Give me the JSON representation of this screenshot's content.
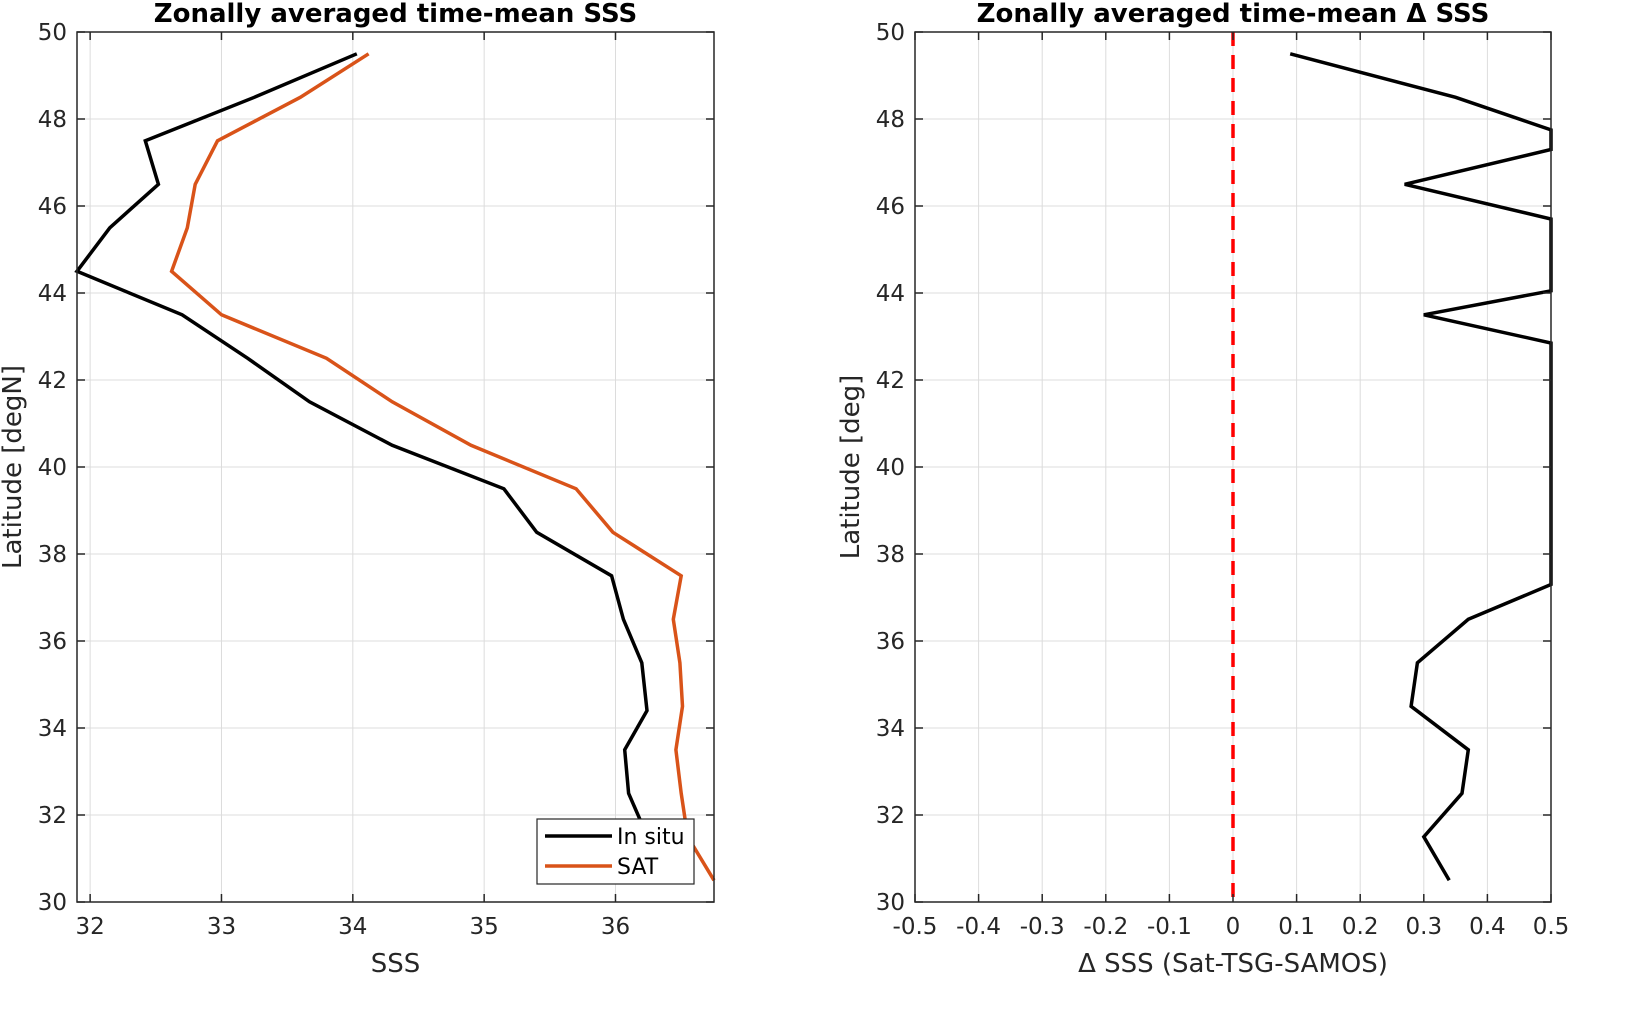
{
  "chart_data": [
    {
      "type": "line",
      "title": "Zonally averaged time-mean SSS",
      "xlabel": "SSS",
      "ylabel": "Latitude [degN]",
      "xlim": [
        31.9,
        36.75
      ],
      "ylim": [
        30,
        50
      ],
      "xticks": [
        32,
        33,
        34,
        35,
        36
      ],
      "yticks": [
        30,
        32,
        34,
        36,
        38,
        40,
        42,
        44,
        46,
        48,
        50
      ],
      "grid": true,
      "legend_position": "bottom-right",
      "series": [
        {
          "name": "In situ",
          "color": "#000000",
          "points": [
            [
              34.03,
              49.5
            ],
            [
              33.25,
              48.5
            ],
            [
              32.42,
              47.5
            ],
            [
              32.52,
              46.5
            ],
            [
              32.15,
              45.5
            ],
            [
              31.9,
              44.5
            ],
            [
              32.7,
              43.5
            ],
            [
              33.2,
              42.5
            ],
            [
              33.67,
              41.5
            ],
            [
              34.3,
              40.5
            ],
            [
              35.15,
              39.5
            ],
            [
              35.4,
              38.5
            ],
            [
              35.97,
              37.5
            ],
            [
              36.06,
              36.5
            ],
            [
              36.2,
              35.5
            ],
            [
              36.24,
              34.4
            ],
            [
              36.07,
              33.5
            ],
            [
              36.1,
              32.5
            ],
            [
              36.2,
              31.8
            ]
          ]
        },
        {
          "name": "SAT",
          "color": "#d95319",
          "points": [
            [
              34.12,
              49.5
            ],
            [
              33.6,
              48.5
            ],
            [
              32.97,
              47.5
            ],
            [
              32.8,
              46.5
            ],
            [
              32.74,
              45.5
            ],
            [
              32.62,
              44.5
            ],
            [
              33.0,
              43.5
            ],
            [
              33.8,
              42.5
            ],
            [
              34.3,
              41.5
            ],
            [
              34.9,
              40.5
            ],
            [
              35.7,
              39.5
            ],
            [
              35.98,
              38.5
            ],
            [
              36.5,
              37.5
            ],
            [
              36.44,
              36.5
            ],
            [
              36.49,
              35.5
            ],
            [
              36.51,
              34.5
            ],
            [
              36.46,
              33.5
            ],
            [
              36.5,
              32.5
            ],
            [
              36.55,
              31.5
            ],
            [
              36.75,
              30.5
            ]
          ]
        }
      ]
    },
    {
      "type": "line",
      "title": "Zonally averaged time-mean Δ SSS",
      "xlabel": "Δ SSS (Sat-TSG-SAMOS)",
      "ylabel": "Latitude [deg]",
      "xlim": [
        -0.5,
        0.5
      ],
      "ylim": [
        30,
        50
      ],
      "xticks": [
        -0.5,
        -0.4,
        -0.3,
        -0.2,
        -0.1,
        0,
        0.1,
        0.2,
        0.3,
        0.4,
        0.5
      ],
      "xtick_labels": [
        "-0.5",
        "-0.4",
        "-0.3",
        "-0.2",
        "-0.1",
        "0",
        "0.1",
        "0.2",
        "0.3",
        "0.4",
        "0.5"
      ],
      "yticks": [
        30,
        32,
        34,
        36,
        38,
        40,
        42,
        44,
        46,
        48,
        50
      ],
      "grid": true,
      "reference_line": {
        "x": 0,
        "color": "#ff0000",
        "style": "dashed"
      },
      "series": [
        {
          "color": "#000000",
          "points": [
            [
              0.09,
              49.5
            ],
            [
              0.35,
              48.5
            ],
            [
              0.5,
              47.75
            ],
            [
              0.5,
              47.3
            ],
            [
              0.27,
              46.5
            ],
            [
              0.5,
              45.7
            ],
            [
              0.5,
              44.05
            ],
            [
              0.3,
              43.5
            ],
            [
              0.5,
              42.85
            ],
            [
              0.5,
              37.3
            ],
            [
              0.37,
              36.5
            ],
            [
              0.29,
              35.5
            ],
            [
              0.28,
              34.5
            ],
            [
              0.37,
              33.5
            ],
            [
              0.36,
              32.5
            ],
            [
              0.3,
              31.5
            ],
            [
              0.34,
              30.5
            ]
          ]
        }
      ]
    }
  ],
  "legend": {
    "items": [
      {
        "label": "In situ",
        "color": "#000000"
      },
      {
        "label": "SAT",
        "color": "#d95319"
      }
    ]
  }
}
